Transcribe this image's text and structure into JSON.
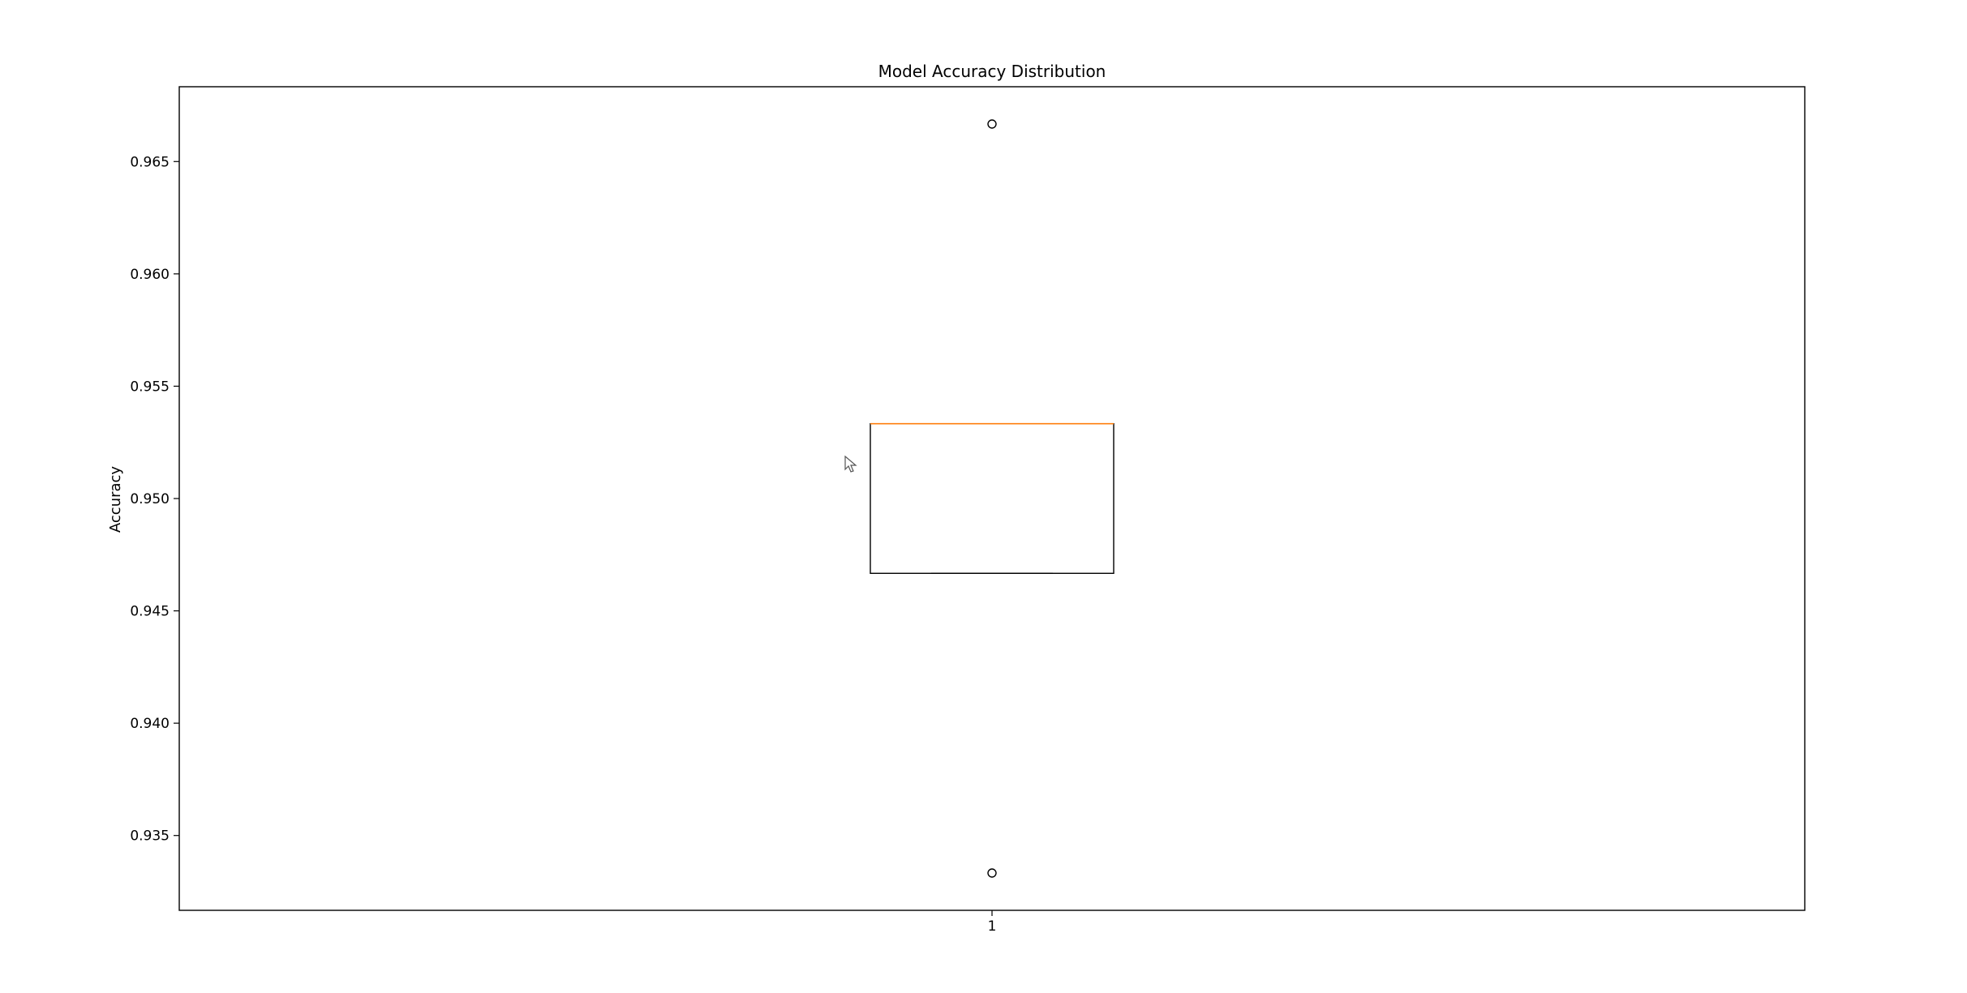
{
  "chart_data": {
    "type": "box",
    "title": "Model Accuracy Distribution",
    "xlabel": "",
    "ylabel": "Accuracy",
    "categories": [
      "1"
    ],
    "boxes": [
      {
        "category": "1",
        "q1": 0.94667,
        "median": 0.95333,
        "q3": 0.95333,
        "whisker_low": 0.94667,
        "whisker_high": 0.95333,
        "outliers": [
          0.96667,
          0.93333
        ]
      }
    ],
    "ylim": [
      0.93167,
      0.96833
    ],
    "yticks": [
      0.935,
      0.94,
      0.945,
      0.95,
      0.955,
      0.96,
      0.965
    ],
    "ytick_labels": [
      "0.935",
      "0.940",
      "0.945",
      "0.950",
      "0.955",
      "0.960",
      "0.965"
    ],
    "grid": false,
    "colors": {
      "median": "#ff7f0e",
      "box": "#000000",
      "outlier": "#000000"
    }
  }
}
